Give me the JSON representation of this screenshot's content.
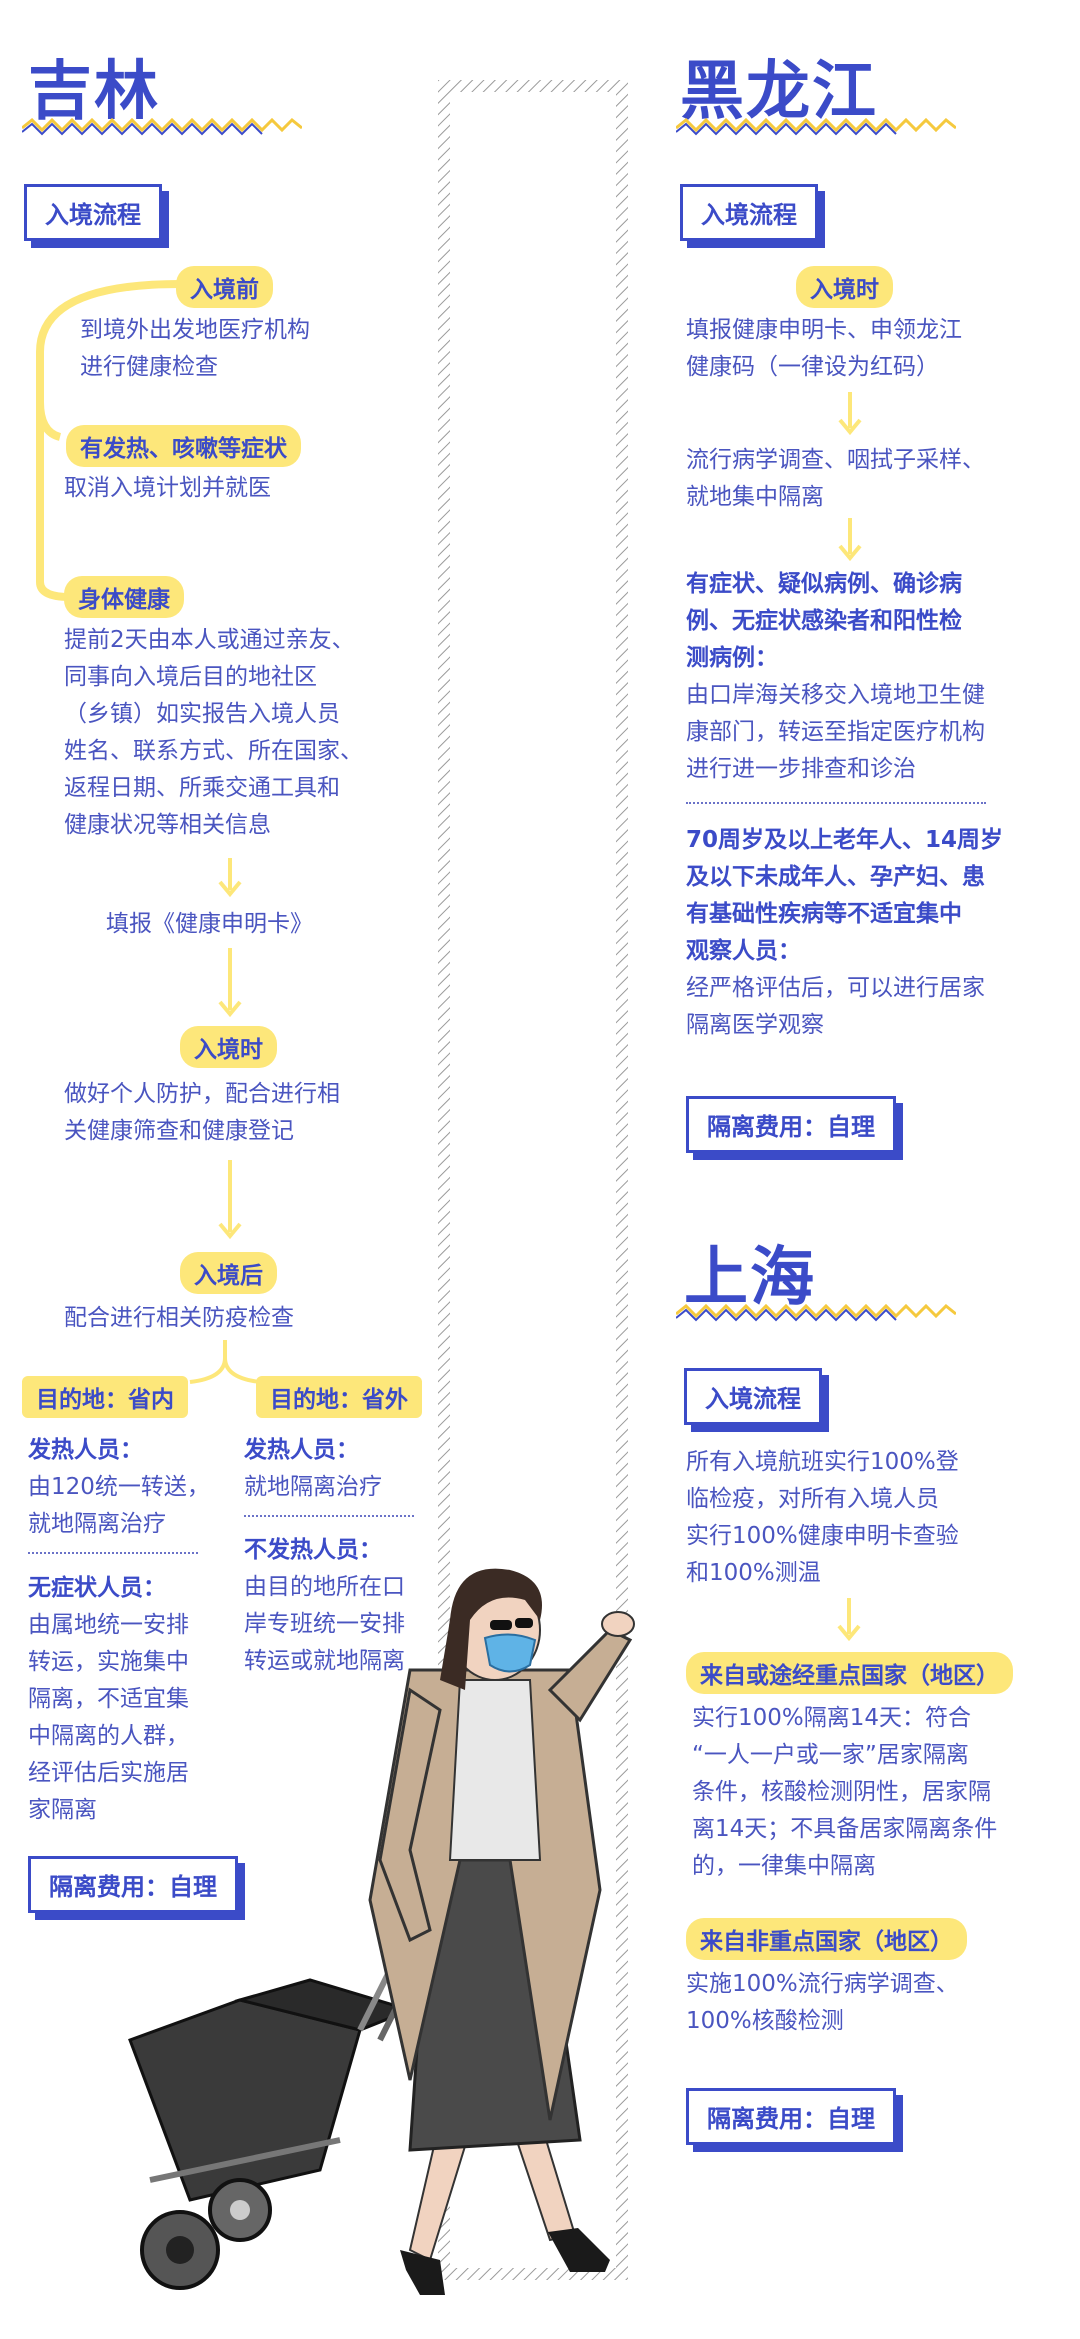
{
  "jilin": {
    "title": "吉林",
    "process_label": "入境流程",
    "before_label": "入境前",
    "before_text": [
      "到境外出发地医疗机构",
      "进行健康检查"
    ],
    "symptom_label": "有发热、咳嗽等症状",
    "symptom_text": "取消入境计划并就医",
    "healthy_label": "身体健康",
    "healthy_text": [
      "提前2天由本人或通过亲友、",
      "同事向入境后目的地社区",
      "（乡镇）如实报告入境人员",
      "姓名、联系方式、所在国家、",
      "返程日期、所乘交通工具和",
      "健康状况等相关信息"
    ],
    "fill_card": "填报《健康申明卡》",
    "arrival_label": "入境时",
    "arrival_text": [
      "做好个人防护，配合进行相",
      "关健康筛查和健康登记"
    ],
    "after_label": "入境后",
    "after_text": "配合进行相关防疫检查",
    "dest_in": "目的地：省内",
    "dest_out": "目的地：省外",
    "in_fever_title": "发热人员：",
    "in_fever_text": [
      "由120统一转送，",
      "就地隔离治疗"
    ],
    "in_nosym_title": "无症状人员：",
    "in_nosym_text": [
      "由属地统一安排",
      "转运，实施集中",
      "隔离，不适宜集",
      "中隔离的人群，",
      "经评估后实施居",
      "家隔离"
    ],
    "out_fever_title": "发热人员：",
    "out_fever_text": "就地隔离治疗",
    "out_nofever_title": "不发热人员：",
    "out_nofever_text": [
      "由目的地所在口",
      "岸专班统一安排",
      "转运或就地隔离"
    ],
    "fee": "隔离费用：自理"
  },
  "heilongjiang": {
    "title": "黑龙江",
    "process_label": "入境流程",
    "arrival_label": "入境时",
    "step1": [
      "填报健康申明卡、申领龙江",
      "健康码（一律设为红码）"
    ],
    "step2": [
      "流行病学调查、咽拭子采样、",
      "就地集中隔离"
    ],
    "case1_title": [
      "有症状、疑似病例、确诊病",
      "例、无症状感染者和阳性检",
      "测病例："
    ],
    "case1_text": [
      "由口岸海关移交入境地卫生健",
      "康部门，转运至指定医疗机构",
      "进行进一步排查和诊治"
    ],
    "case2_title": [
      "70周岁及以上老年人、14周岁",
      "及以下未成年人、孕产妇、患",
      "有基础性疾病等不适宜集中",
      "观察人员："
    ],
    "case2_text": [
      "经严格评估后，可以进行居家",
      "隔离医学观察"
    ],
    "fee": "隔离费用：自理"
  },
  "shanghai": {
    "title": "上海",
    "process_label": "入境流程",
    "intro": [
      "所有入境航班实行100%登",
      "临检疫，对所有入境人员",
      "实行100%健康申明卡查验",
      "和100%测温"
    ],
    "key_label": "来自或途经重点国家（地区）",
    "key_text": [
      "实行100%隔离14天：符合",
      "“一人一户或一家”居家隔离",
      "条件，核酸检测阴性，居家隔",
      "离14天；不具备居家隔离条件",
      "的，一律集中隔离"
    ],
    "nonkey_label": "来自非重点国家（地区）",
    "nonkey_text": [
      "实施100%流行病学调查、",
      "100%核酸检测"
    ],
    "fee": "隔离费用：自理"
  },
  "colors": {
    "accent": "#3b4bc8",
    "highlight": "#fde77a",
    "text": "#4a55c0"
  }
}
